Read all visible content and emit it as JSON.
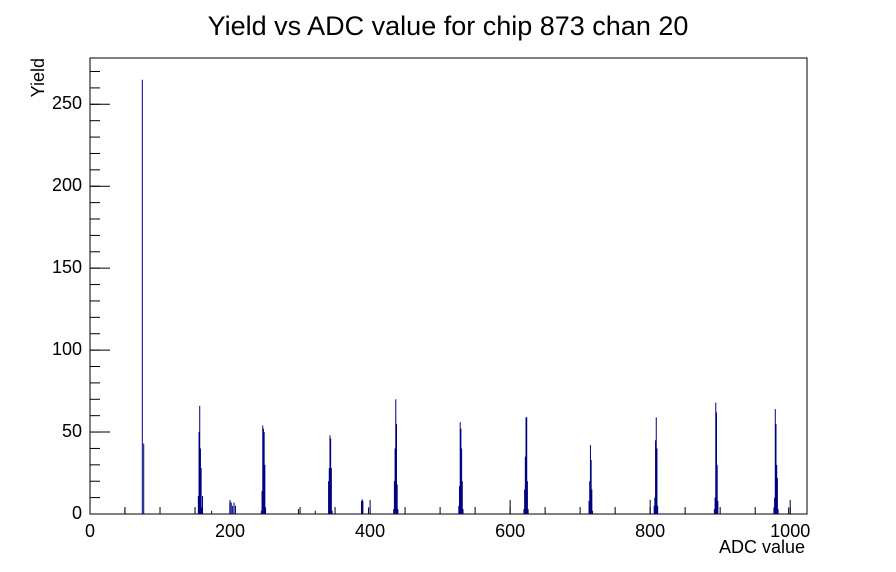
{
  "chart_data": {
    "type": "histogram",
    "title": "Yield vs ADC value for chip 873 chan 20",
    "x_label": "ADC value",
    "y_label": "Yield",
    "color": "#000080",
    "xlim": [
      0,
      1024
    ],
    "ylim": [
      0,
      278.25
    ],
    "xticks": [
      0,
      200,
      400,
      600,
      800,
      1000
    ],
    "yticks": [
      0,
      50,
      100,
      150,
      200,
      250
    ],
    "series": [
      {
        "name": "Yield",
        "x": [
          49,
          74,
          76,
          154,
          155,
          156,
          157,
          158,
          159,
          160,
          173,
          199,
          201,
          203,
          205,
          207,
          244,
          245,
          246,
          247,
          248,
          249,
          250,
          297,
          321,
          340,
          341,
          342,
          343,
          344,
          345,
          387,
          388,
          389,
          397,
          433,
          434,
          435,
          436,
          437,
          438,
          439,
          526,
          527,
          528,
          529,
          530,
          531,
          532,
          619,
          620,
          621,
          622,
          623,
          624,
          625,
          712,
          713,
          714,
          715,
          716,
          717,
          805,
          806,
          807,
          808,
          809,
          810,
          891,
          892,
          893,
          894,
          895,
          896,
          976,
          977,
          978,
          979,
          980,
          981,
          982,
          997
        ],
        "values": [
          3,
          265,
          43,
          11,
          50,
          66,
          40,
          28,
          4,
          11,
          2,
          7,
          7,
          5,
          7,
          5,
          2,
          14,
          54,
          52,
          50,
          30,
          4,
          3,
          2,
          20,
          28,
          48,
          46,
          28,
          2,
          8,
          9,
          8,
          4,
          3,
          20,
          40,
          70,
          55,
          18,
          3,
          5,
          17,
          56,
          52,
          40,
          20,
          3,
          3,
          15,
          35,
          59,
          59,
          20,
          3,
          8,
          20,
          42,
          33,
          15,
          2,
          5,
          10,
          45,
          59,
          40,
          5,
          3,
          10,
          68,
          62,
          30,
          8,
          4,
          10,
          64,
          55,
          30,
          22,
          3,
          4
        ]
      }
    ]
  }
}
